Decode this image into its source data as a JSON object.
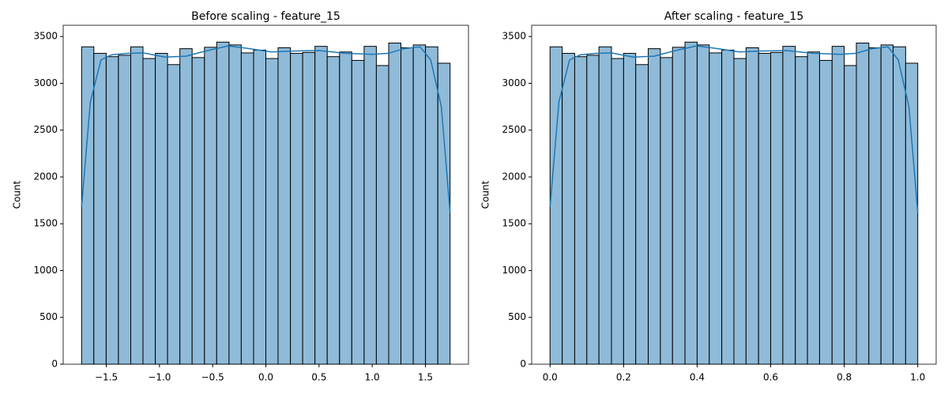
{
  "chart_data": [
    {
      "type": "histogram",
      "title": "Before scaling - feature_15",
      "ylabel": "Count",
      "bins": [
        -1.732,
        -1.617,
        -1.501,
        -1.386,
        -1.27,
        -1.155,
        -1.039,
        -0.924,
        -0.808,
        -0.693,
        -0.577,
        -0.462,
        -0.346,
        -0.231,
        -0.115,
        0,
        0.115,
        0.231,
        0.346,
        0.462,
        0.577,
        0.693,
        0.808,
        0.924,
        1.039,
        1.155,
        1.27,
        1.386,
        1.501,
        1.617,
        1.732
      ],
      "values": [
        3390,
        3320,
        3285,
        3300,
        3390,
        3265,
        3320,
        3200,
        3370,
        3275,
        3385,
        3440,
        3410,
        3325,
        3355,
        3265,
        3380,
        3320,
        3330,
        3395,
        3285,
        3335,
        3245,
        3395,
        3190,
        3430,
        3380,
        3410,
        3390,
        3215
      ],
      "color": "#8fbbd9",
      "kde": {
        "x": [
          -1.732,
          -1.65,
          -1.55,
          -1.45,
          -1.3,
          -1.15,
          -0.95,
          -0.75,
          -0.55,
          -0.35,
          -0.15,
          0.05,
          0.25,
          0.5,
          0.75,
          1.0,
          1.15,
          1.3,
          1.45,
          1.55,
          1.65,
          1.732
        ],
        "values": [
          1680,
          2800,
          3250,
          3305,
          3320,
          3325,
          3280,
          3290,
          3350,
          3400,
          3370,
          3335,
          3345,
          3350,
          3320,
          3310,
          3320,
          3370,
          3390,
          3250,
          2750,
          1620
        ],
        "color": "#1f77b4"
      },
      "xlim": [
        -1.905,
        1.905
      ],
      "xticks": [
        {
          "value": -1.5,
          "label": "−1.5"
        },
        {
          "value": -1.0,
          "label": "−1.0"
        },
        {
          "value": -0.5,
          "label": "−0.5"
        },
        {
          "value": 0,
          "label": "0.0"
        },
        0.5,
        {
          "value": 1,
          "label": "1.0"
        },
        1.5
      ],
      "ylim": [
        0,
        3620
      ],
      "yticks": [
        0,
        500,
        1000,
        1500,
        2000,
        2500,
        3000,
        3500
      ]
    },
    {
      "type": "histogram",
      "title": "After scaling - feature_15",
      "ylabel": "Count",
      "bins": [
        0,
        0.033,
        0.067,
        0.1,
        0.133,
        0.167,
        0.2,
        0.233,
        0.267,
        0.3,
        0.333,
        0.367,
        0.4,
        0.433,
        0.467,
        0.5,
        0.533,
        0.567,
        0.6,
        0.633,
        0.667,
        0.7,
        0.733,
        0.767,
        0.8,
        0.833,
        0.867,
        0.9,
        0.933,
        0.967,
        1
      ],
      "values": [
        3390,
        3320,
        3285,
        3300,
        3390,
        3265,
        3320,
        3200,
        3370,
        3275,
        3385,
        3440,
        3410,
        3325,
        3355,
        3265,
        3380,
        3320,
        3330,
        3395,
        3285,
        3335,
        3245,
        3395,
        3190,
        3430,
        3380,
        3410,
        3390,
        3215
      ],
      "color": "#8fbbd9",
      "kde": {
        "x": [
          0,
          0.024,
          0.053,
          0.082,
          0.125,
          0.168,
          0.226,
          0.283,
          0.341,
          0.399,
          0.457,
          0.514,
          0.572,
          0.644,
          0.717,
          0.789,
          0.832,
          0.875,
          0.919,
          0.947,
          0.976,
          1
        ],
        "values": [
          1680,
          2800,
          3250,
          3305,
          3320,
          3325,
          3280,
          3290,
          3350,
          3400,
          3370,
          3335,
          3345,
          3350,
          3320,
          3310,
          3320,
          3370,
          3390,
          3250,
          2750,
          1620
        ],
        "color": "#1f77b4"
      },
      "xlim": [
        -0.05,
        1.05
      ],
      "xticks": [
        {
          "value": 0,
          "label": "0.0"
        },
        0.2,
        0.4,
        0.6,
        0.8,
        {
          "value": 1,
          "label": "1.0"
        }
      ],
      "ylim": [
        0,
        3620
      ],
      "yticks": [
        0,
        500,
        1000,
        1500,
        2000,
        2500,
        3000,
        3500
      ]
    }
  ]
}
